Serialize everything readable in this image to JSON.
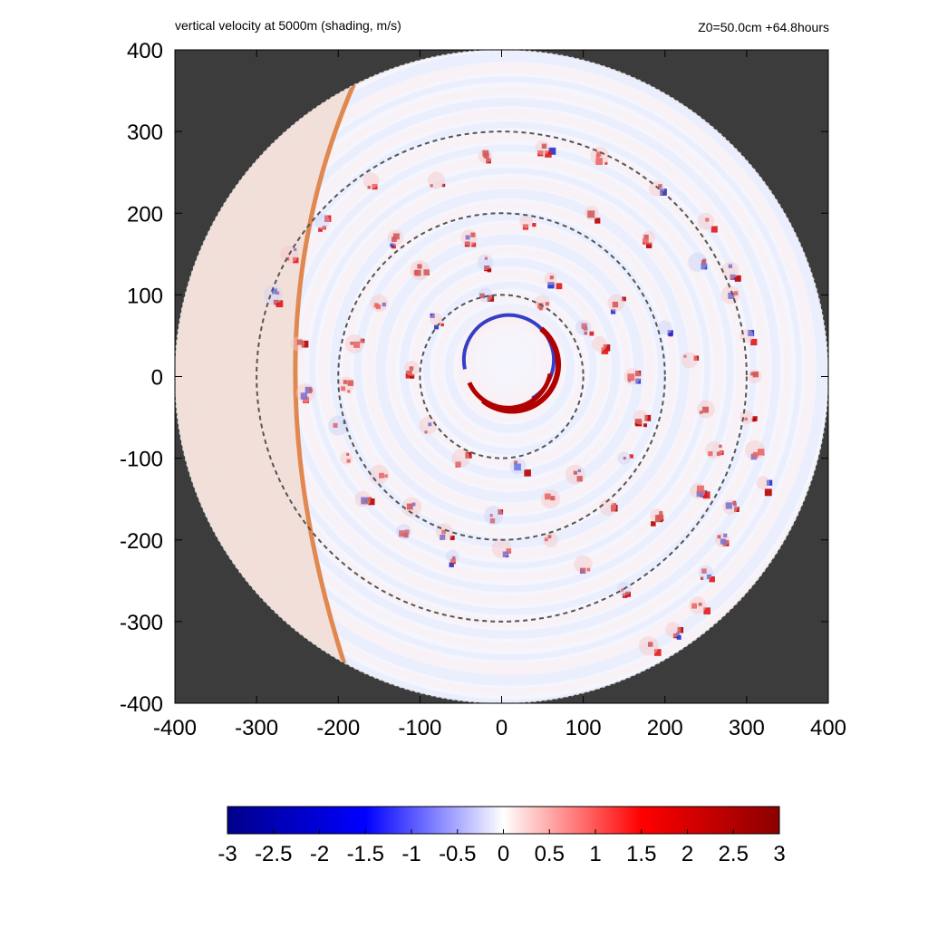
{
  "chart_data": {
    "type": "heatmap",
    "title": "vertical velocity at 5000m (shading, m/s)",
    "subtitle": "Z0=50.0cm  +64.8hours",
    "xlabel": "",
    "ylabel": "",
    "xlim": [
      -400,
      400
    ],
    "ylim": [
      -400,
      400
    ],
    "xticks": [
      "-400",
      "-300",
      "-200",
      "-100",
      "0",
      "100",
      "200",
      "300",
      "400"
    ],
    "yticks": [
      "400",
      "300",
      "200",
      "100",
      "0",
      "-100",
      "-200",
      "-300",
      "-400"
    ],
    "domain_radius": 400,
    "dashed_circle_radii": [
      100,
      200,
      300
    ],
    "background_color": "#3c3c3c",
    "colorbar": {
      "min": -3,
      "max": 3,
      "ticks": [
        "-3",
        "-2.5",
        "-2",
        "-1.5",
        "-1",
        "-0.5",
        "0",
        "0.5",
        "1",
        "1.5",
        "2",
        "2.5",
        "3"
      ],
      "colors": [
        "#00008b",
        "#0000ff",
        "#ffffff",
        "#ff0000",
        "#8b0000"
      ]
    },
    "features": {
      "eyewall": {
        "center": [
          10,
          20
        ],
        "radius": 55,
        "updraft_color": "#b00000",
        "downdraft_color": "#1020c0"
      },
      "spiral_cells": [
        [
          -130,
          170
        ],
        [
          -20,
          140
        ],
        [
          60,
          120
        ],
        [
          140,
          90
        ],
        [
          200,
          60
        ],
        [
          230,
          20
        ],
        [
          250,
          -40
        ],
        [
          260,
          -90
        ],
        [
          240,
          -140
        ],
        [
          190,
          -170
        ],
        [
          130,
          -160
        ],
        [
          60,
          -150
        ],
        [
          -10,
          -170
        ],
        [
          -70,
          -190
        ],
        [
          -120,
          -190
        ],
        [
          -170,
          -150
        ],
        [
          -190,
          -100
        ],
        [
          -200,
          -60
        ],
        [
          -190,
          -10
        ],
        [
          -180,
          40
        ],
        [
          -150,
          90
        ],
        [
          -100,
          130
        ],
        [
          -40,
          170
        ],
        [
          30,
          190
        ],
        [
          110,
          200
        ],
        [
          180,
          170
        ],
        [
          240,
          140
        ],
        [
          280,
          100
        ],
        [
          300,
          50
        ],
        [
          310,
          0
        ],
        [
          300,
          -50
        ],
        [
          310,
          -90
        ],
        [
          320,
          -130
        ],
        [
          280,
          -160
        ],
        [
          270,
          -200
        ],
        [
          250,
          -240
        ],
        [
          240,
          -280
        ],
        [
          210,
          -310
        ],
        [
          180,
          -330
        ],
        [
          -80,
          240
        ],
        [
          -20,
          270
        ],
        [
          50,
          280
        ],
        [
          120,
          270
        ],
        [
          190,
          230
        ],
        [
          250,
          190
        ],
        [
          280,
          130
        ],
        [
          -160,
          240
        ],
        [
          -220,
          190
        ],
        [
          -260,
          150
        ],
        [
          -280,
          100
        ],
        [
          -250,
          40
        ],
        [
          -240,
          -20
        ],
        [
          100,
          -230
        ],
        [
          150,
          -260
        ],
        [
          60,
          -200
        ],
        [
          0,
          -210
        ],
        [
          -60,
          -220
        ],
        [
          -110,
          -160
        ],
        [
          -150,
          -120
        ],
        [
          120,
          40
        ],
        [
          160,
          0
        ],
        [
          170,
          -50
        ],
        [
          150,
          -100
        ],
        [
          90,
          -120
        ],
        [
          20,
          -110
        ],
        [
          -50,
          -100
        ],
        [
          -90,
          -60
        ],
        [
          -110,
          10
        ],
        [
          -80,
          70
        ],
        [
          -20,
          100
        ],
        [
          50,
          90
        ],
        [
          100,
          60
        ]
      ]
    }
  }
}
